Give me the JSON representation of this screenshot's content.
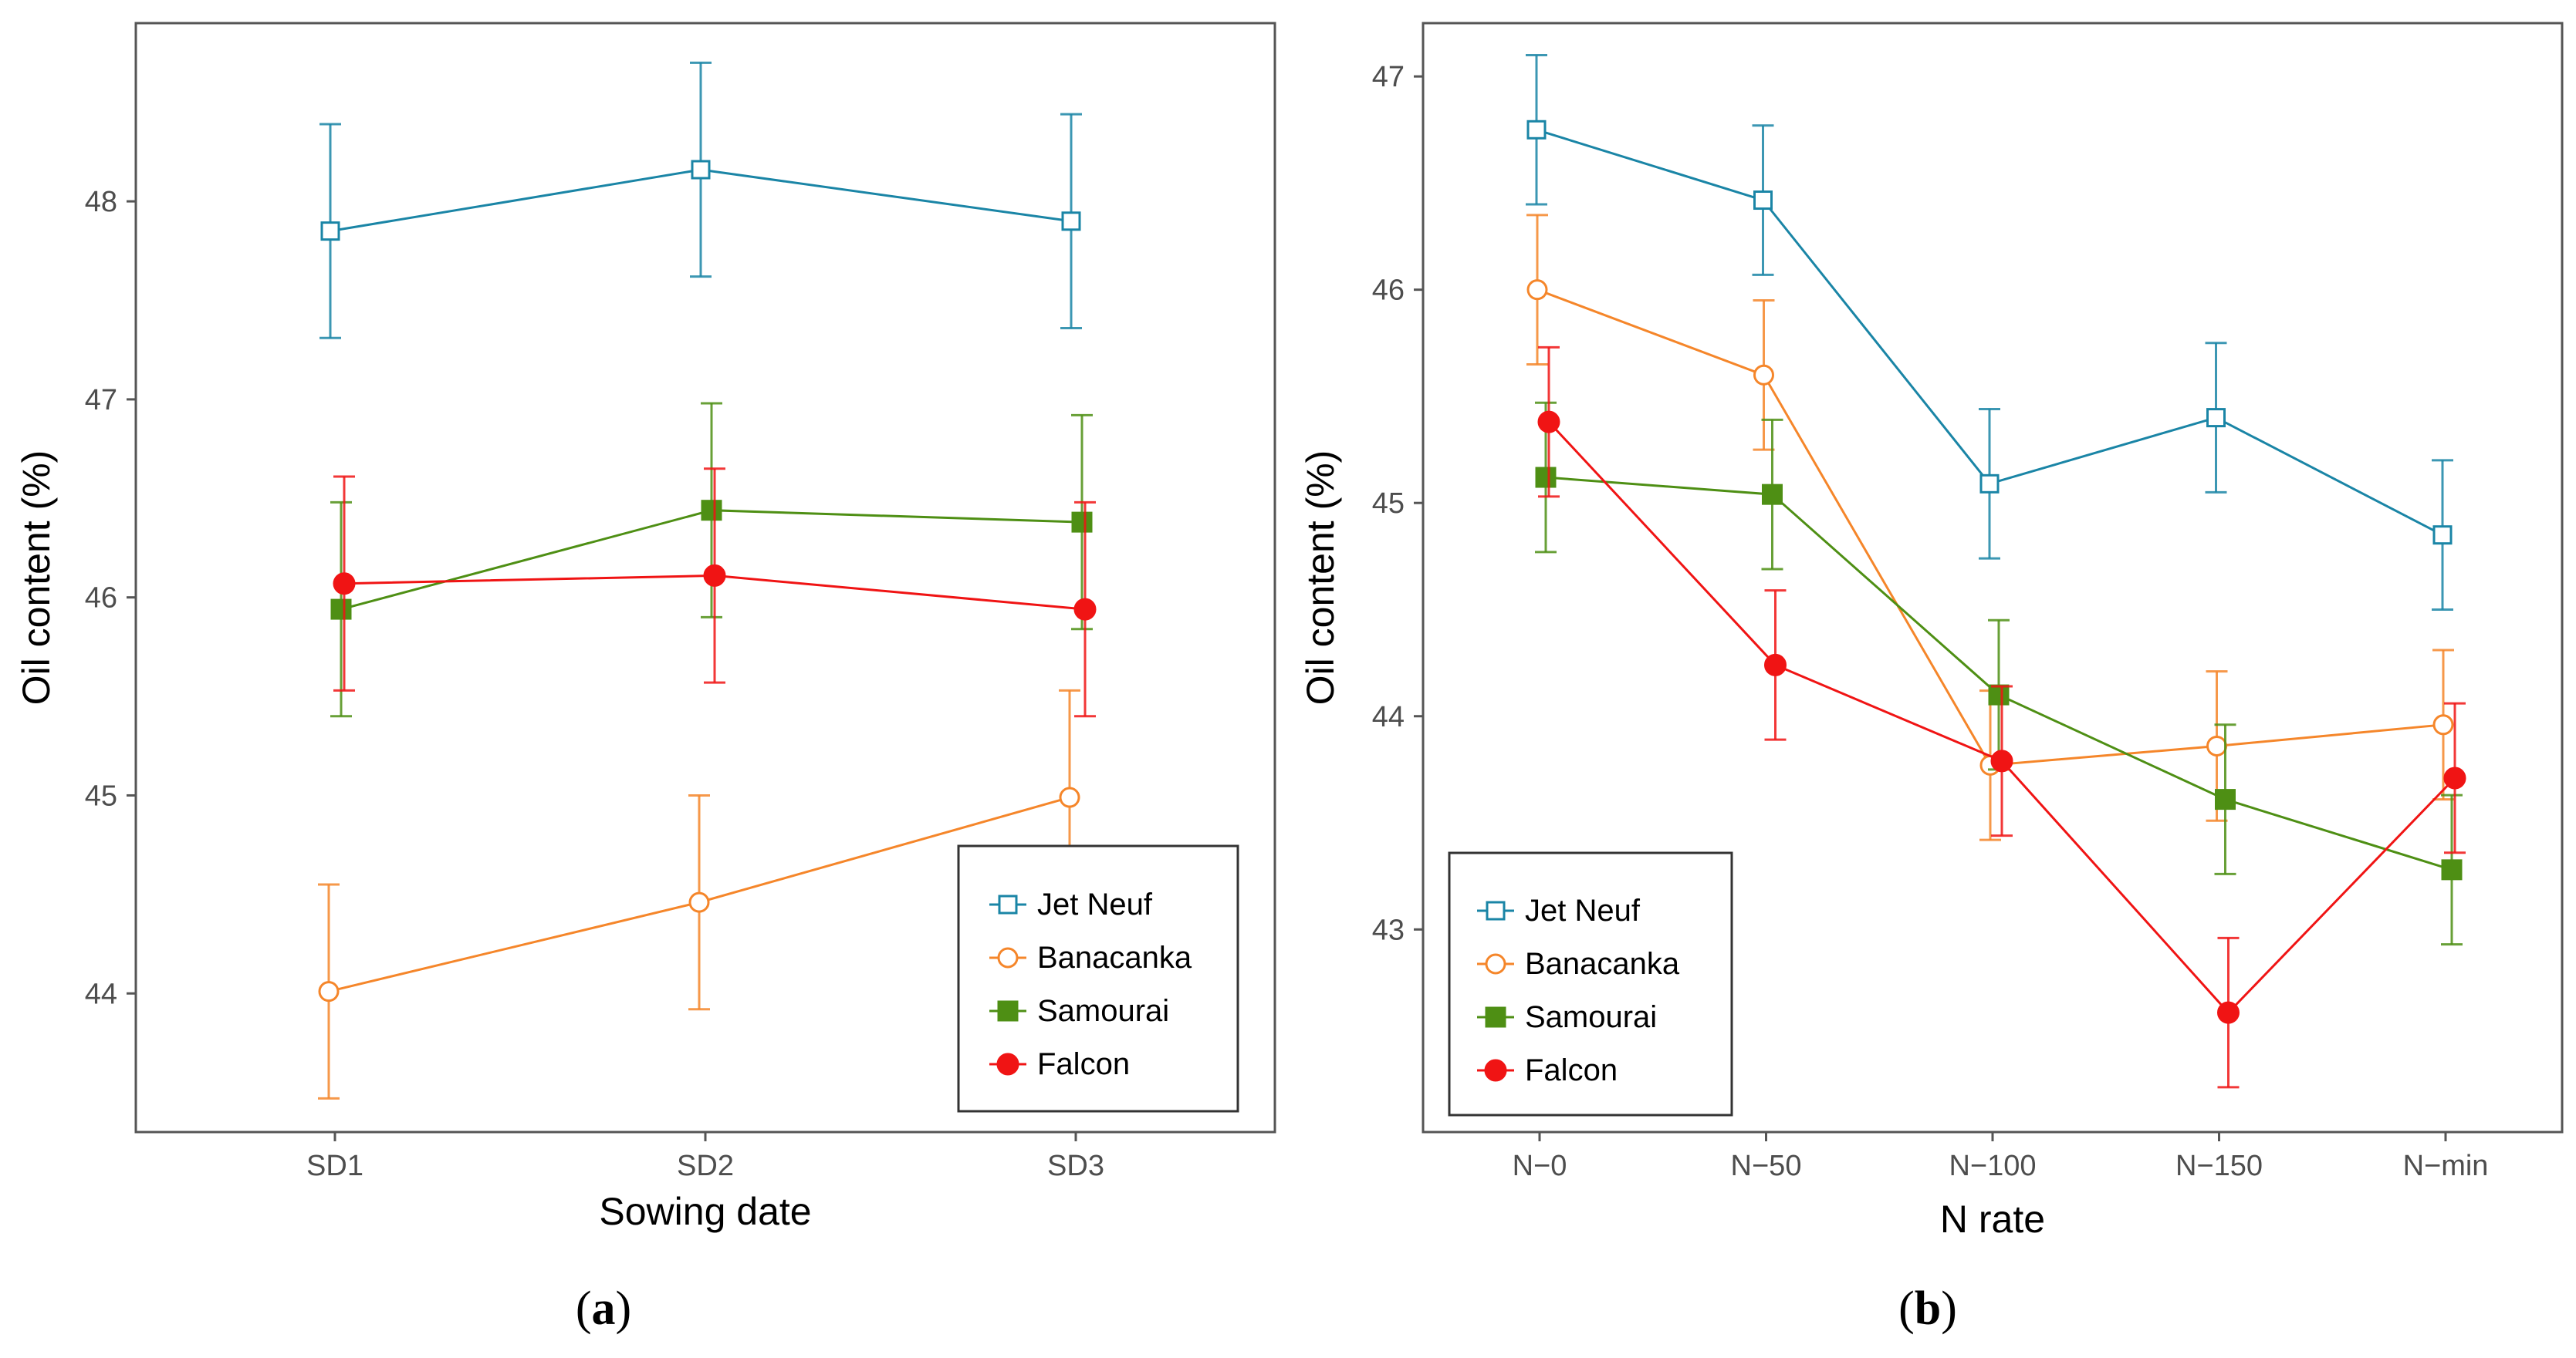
{
  "colors": {
    "jet_neuf": "#1a85a6",
    "banacanka": "#f5862a",
    "samourai": "#4e8f14",
    "falcon": "#f01414",
    "axis": "#555555",
    "tick_text": "#4d4d4d"
  },
  "chart_data": [
    {
      "type": "line",
      "panel_caption": {
        "open": "(",
        "letter": "a",
        "close": ")"
      },
      "title": "",
      "xlabel": "Sowing date",
      "ylabel": "Oil content (%)",
      "categories": [
        "SD1",
        "SD2",
        "SD3"
      ],
      "ylim": [
        43.3,
        48.9
      ],
      "yticks": [
        44,
        45,
        46,
        47,
        48
      ],
      "grid": false,
      "legend_position": "bottom-right",
      "series": [
        {
          "name": "Jet Neuf",
          "marker": "open-square",
          "color": "#1a85a6",
          "values": [
            47.85,
            48.16,
            47.9
          ],
          "errors": [
            0.54,
            0.54,
            0.54
          ]
        },
        {
          "name": "Banacanka",
          "marker": "open-circle",
          "color": "#f5862a",
          "values": [
            44.01,
            44.46,
            44.99
          ],
          "errors": [
            0.54,
            0.54,
            0.54
          ]
        },
        {
          "name": "Samourai",
          "marker": "filled-square",
          "color": "#4e8f14",
          "values": [
            45.94,
            46.44,
            46.38
          ],
          "errors": [
            0.54,
            0.54,
            0.54
          ]
        },
        {
          "name": "Falcon",
          "marker": "filled-circle",
          "color": "#f01414",
          "values": [
            46.07,
            46.11,
            45.94
          ],
          "errors": [
            0.54,
            0.54,
            0.54
          ]
        }
      ]
    },
    {
      "type": "line",
      "panel_caption": {
        "open": "(",
        "letter": "b",
        "close": ")"
      },
      "title": "",
      "xlabel": "N rate",
      "ylabel": "Oil content (%)",
      "categories": [
        "N−0",
        "N−50",
        "N−100",
        "N−150",
        "N−min"
      ],
      "ylim": [
        42.05,
        47.25
      ],
      "yticks": [
        43,
        44,
        45,
        46,
        47
      ],
      "grid": false,
      "legend_position": "bottom-left",
      "series": [
        {
          "name": "Jet Neuf",
          "marker": "open-square",
          "color": "#1a85a6",
          "values": [
            46.75,
            46.42,
            45.09,
            45.4,
            44.85
          ],
          "errors": [
            0.35,
            0.35,
            0.35,
            0.35,
            0.35
          ]
        },
        {
          "name": "Banacanka",
          "marker": "open-circle",
          "color": "#f5862a",
          "values": [
            46.0,
            45.6,
            43.77,
            43.86,
            43.96
          ],
          "errors": [
            0.35,
            0.35,
            0.35,
            0.35,
            0.35
          ]
        },
        {
          "name": "Samourai",
          "marker": "filled-square",
          "color": "#4e8f14",
          "values": [
            45.12,
            45.04,
            44.1,
            43.61,
            43.28
          ],
          "errors": [
            0.35,
            0.35,
            0.35,
            0.35,
            0.35
          ]
        },
        {
          "name": "Falcon",
          "marker": "filled-circle",
          "color": "#f01414",
          "values": [
            45.38,
            44.24,
            43.79,
            42.61,
            43.71
          ],
          "errors": [
            0.35,
            0.35,
            0.35,
            0.35,
            0.35
          ]
        }
      ]
    }
  ]
}
